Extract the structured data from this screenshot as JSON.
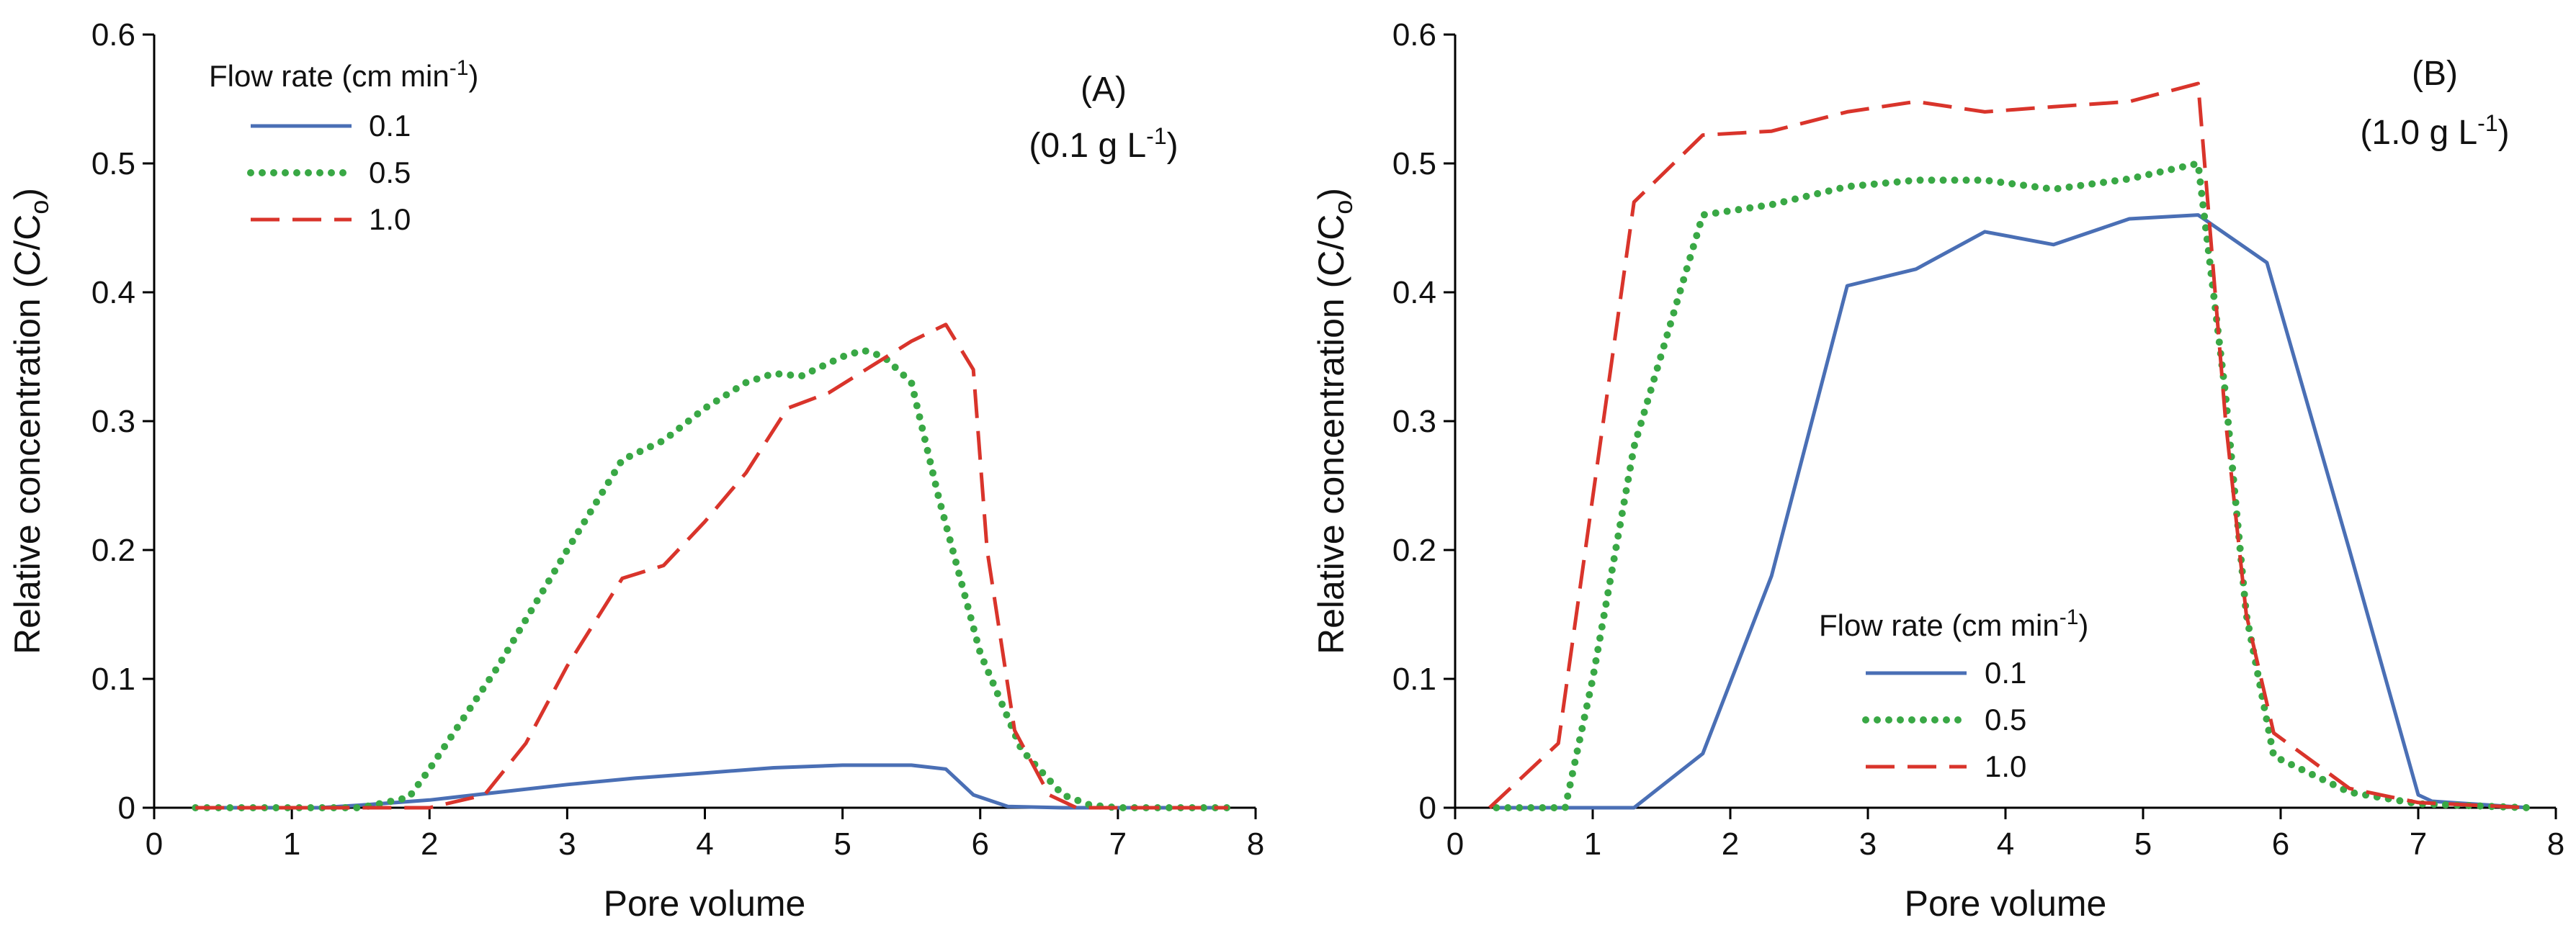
{
  "colors": {
    "s01": "#4a6fb5",
    "s05": "#39a845",
    "s10": "#d9342b"
  },
  "chart_data": [
    {
      "type": "line",
      "panel": "A",
      "title": "(A)",
      "subtitle": "(0.1 g L",
      "subtitle_sup": "-1",
      "subtitle_end": ")",
      "xlabel": "Pore volume",
      "ylabel_main": "Relative concentration (C/C",
      "ylabel_sub": "o",
      "ylabel_end": ")",
      "xlim": [
        0,
        8
      ],
      "ylim": [
        0,
        0.6
      ],
      "xticks": [
        "0",
        "1",
        "2",
        "3",
        "4",
        "5",
        "6",
        "7",
        "8"
      ],
      "yticks": [
        "0",
        "0.1",
        "0.2",
        "0.3",
        "0.4",
        "0.5",
        "0.6"
      ],
      "legend": {
        "title": "Flow rate (cm min",
        "title_sup": "-1",
        "title_end": ")",
        "position": "top-left"
      },
      "series": [
        {
          "name": "0.1",
          "style": "solid",
          "color": "#4a6fb5",
          "x": [
            0.3,
            1.2,
            1.5,
            2.0,
            2.5,
            3.0,
            3.5,
            4.0,
            4.5,
            5.0,
            5.5,
            5.75,
            5.95,
            6.2,
            6.6,
            7.0,
            7.8
          ],
          "y": [
            0,
            0,
            0.002,
            0.006,
            0.012,
            0.018,
            0.023,
            0.027,
            0.031,
            0.033,
            0.033,
            0.03,
            0.01,
            0.001,
            0,
            0,
            0
          ]
        },
        {
          "name": "0.5",
          "style": "dotted",
          "color": "#39a845",
          "x": [
            0.3,
            1.5,
            1.85,
            2.0,
            2.5,
            3.0,
            3.4,
            3.7,
            4.0,
            4.3,
            4.5,
            4.7,
            5.0,
            5.15,
            5.3,
            5.5,
            5.7,
            6.0,
            6.3,
            6.6,
            6.8,
            7.0,
            7.8
          ],
          "y": [
            0,
            0,
            0.008,
            0.03,
            0.11,
            0.2,
            0.27,
            0.285,
            0.31,
            0.33,
            0.337,
            0.335,
            0.35,
            0.355,
            0.35,
            0.33,
            0.24,
            0.12,
            0.045,
            0.01,
            0.002,
            0,
            0
          ]
        },
        {
          "name": "1.0",
          "style": "dashed",
          "color": "#d9342b",
          "x": [
            0.3,
            2.0,
            2.4,
            2.7,
            3.0,
            3.4,
            3.7,
            4.0,
            4.3,
            4.6,
            4.9,
            5.2,
            5.5,
            5.75,
            5.95,
            6.05,
            6.25,
            6.5,
            6.7,
            7.0,
            7.8
          ],
          "y": [
            0,
            0,
            0.01,
            0.05,
            0.11,
            0.178,
            0.188,
            0.222,
            0.26,
            0.31,
            0.322,
            0.342,
            0.362,
            0.375,
            0.34,
            0.2,
            0.06,
            0.01,
            0,
            0,
            0
          ]
        }
      ]
    },
    {
      "type": "line",
      "panel": "B",
      "title": "(B)",
      "subtitle": "(1.0 g L",
      "subtitle_sup": "-1",
      "subtitle_end": ")",
      "xlabel": "Pore volume",
      "ylabel_main": "Relative concentration (C/C",
      "ylabel_sub": "o",
      "ylabel_end": ")",
      "xlim": [
        0,
        8
      ],
      "ylim": [
        0,
        0.6
      ],
      "xticks": [
        "0",
        "1",
        "2",
        "3",
        "4",
        "5",
        "6",
        "7",
        "8"
      ],
      "yticks": [
        "0",
        "0.1",
        "0.2",
        "0.3",
        "0.4",
        "0.5",
        "0.6"
      ],
      "legend": {
        "title": "Flow rate (cm min",
        "title_sup": "-1",
        "title_end": ")",
        "position": "center-bottom"
      },
      "series": [
        {
          "name": "0.1",
          "style": "solid",
          "color": "#4a6fb5",
          "x": [
            0.3,
            1.3,
            1.8,
            2.3,
            2.85,
            3.35,
            3.85,
            4.35,
            4.9,
            5.4,
            5.9,
            6.5,
            7.0,
            7.1,
            7.8
          ],
          "y": [
            0,
            0,
            0.042,
            0.18,
            0.405,
            0.418,
            0.447,
            0.437,
            0.457,
            0.46,
            0.423,
            0.2,
            0.01,
            0.005,
            0
          ]
        },
        {
          "name": "0.5",
          "style": "dotted",
          "color": "#39a845",
          "x": [
            0.3,
            0.8,
            1.0,
            1.3,
            1.8,
            2.3,
            2.85,
            3.35,
            3.85,
            4.35,
            4.9,
            5.4,
            5.6,
            5.75,
            5.95,
            6.5,
            7.0,
            7.8
          ],
          "y": [
            0,
            0,
            0.1,
            0.28,
            0.46,
            0.468,
            0.482,
            0.487,
            0.487,
            0.48,
            0.488,
            0.5,
            0.32,
            0.15,
            0.04,
            0.012,
            0.003,
            0
          ]
        },
        {
          "name": "1.0",
          "style": "dashed",
          "color": "#d9342b",
          "x": [
            0.25,
            0.75,
            1.3,
            1.8,
            2.3,
            2.85,
            3.35,
            3.85,
            4.35,
            4.9,
            5.4,
            5.6,
            5.75,
            5.95,
            6.5,
            7.0,
            7.8
          ],
          "y": [
            0,
            0.05,
            0.47,
            0.522,
            0.525,
            0.54,
            0.548,
            0.54,
            0.544,
            0.548,
            0.562,
            0.3,
            0.15,
            0.058,
            0.015,
            0.004,
            0
          ]
        }
      ]
    }
  ]
}
